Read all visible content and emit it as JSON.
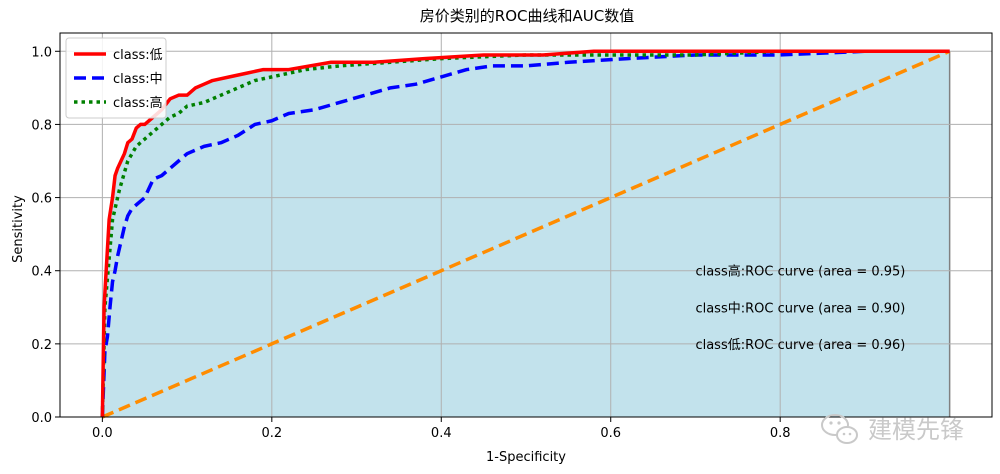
{
  "chart_data": {
    "type": "line",
    "title": "房价类别的ROC曲线和AUC数值",
    "xlabel": "1-Specificity",
    "ylabel": "Sensitivity",
    "xlim": [
      -0.05,
      1.05
    ],
    "ylim": [
      0,
      1.05
    ],
    "xticks": [
      "0.0",
      "0.2",
      "0.4",
      "0.6",
      "0.8"
    ],
    "xtick_values": [
      0,
      0.2,
      0.4,
      0.6,
      0.8
    ],
    "yticks": [
      "0.0",
      "0.2",
      "0.4",
      "0.6",
      "0.8",
      "1.0"
    ],
    "ytick_values": [
      0,
      0.2,
      0.4,
      0.6,
      0.8,
      1.0
    ],
    "grid": true,
    "legend_position": "top-left",
    "fill_color": "#add8e6",
    "series": [
      {
        "name": "class:低",
        "color": "#ff0000",
        "style": "solid",
        "x": [
          0,
          0.002,
          0.004,
          0.006,
          0.008,
          0.01,
          0.012,
          0.015,
          0.018,
          0.022,
          0.026,
          0.03,
          0.035,
          0.04,
          0.045,
          0.05,
          0.06,
          0.07,
          0.08,
          0.09,
          0.1,
          0.11,
          0.12,
          0.13,
          0.15,
          0.17,
          0.19,
          0.22,
          0.27,
          0.32,
          0.38,
          0.45,
          0.52,
          0.58,
          0.65,
          0.8,
          1.0
        ],
        "y": [
          0,
          0.3,
          0.38,
          0.46,
          0.54,
          0.57,
          0.6,
          0.66,
          0.68,
          0.7,
          0.72,
          0.75,
          0.76,
          0.79,
          0.8,
          0.8,
          0.82,
          0.84,
          0.87,
          0.88,
          0.88,
          0.9,
          0.91,
          0.92,
          0.93,
          0.94,
          0.95,
          0.95,
          0.97,
          0.97,
          0.98,
          0.99,
          0.99,
          1.0,
          1.0,
          1.0,
          1.0
        ]
      },
      {
        "name": "class:中",
        "color": "#0000ff",
        "style": "dashed",
        "x": [
          0,
          0.003,
          0.006,
          0.009,
          0.012,
          0.015,
          0.018,
          0.022,
          0.026,
          0.03,
          0.035,
          0.04,
          0.05,
          0.06,
          0.07,
          0.08,
          0.09,
          0.1,
          0.12,
          0.14,
          0.16,
          0.18,
          0.2,
          0.22,
          0.25,
          0.28,
          0.31,
          0.34,
          0.37,
          0.4,
          0.43,
          0.46,
          0.5,
          0.55,
          0.62,
          0.7,
          0.8,
          0.9,
          1.0
        ],
        "y": [
          0,
          0.18,
          0.22,
          0.3,
          0.37,
          0.4,
          0.44,
          0.48,
          0.52,
          0.55,
          0.57,
          0.58,
          0.6,
          0.65,
          0.66,
          0.68,
          0.7,
          0.72,
          0.74,
          0.75,
          0.77,
          0.8,
          0.81,
          0.83,
          0.84,
          0.86,
          0.88,
          0.9,
          0.91,
          0.93,
          0.95,
          0.96,
          0.96,
          0.97,
          0.98,
          0.99,
          0.99,
          1.0,
          1.0
        ]
      },
      {
        "name": "class:高",
        "color": "#008000",
        "style": "dotted",
        "x": [
          0,
          0.003,
          0.006,
          0.009,
          0.012,
          0.016,
          0.02,
          0.025,
          0.03,
          0.035,
          0.04,
          0.05,
          0.06,
          0.07,
          0.08,
          0.09,
          0.1,
          0.12,
          0.14,
          0.16,
          0.18,
          0.2,
          0.24,
          0.28,
          0.34,
          0.4,
          0.5,
          0.6,
          0.7,
          0.8,
          0.9,
          1.0
        ],
        "y": [
          0,
          0.3,
          0.38,
          0.46,
          0.54,
          0.58,
          0.62,
          0.66,
          0.7,
          0.72,
          0.74,
          0.76,
          0.78,
          0.8,
          0.82,
          0.83,
          0.85,
          0.86,
          0.88,
          0.9,
          0.92,
          0.93,
          0.95,
          0.96,
          0.97,
          0.98,
          0.99,
          0.99,
          0.99,
          1.0,
          1.0,
          1.0
        ]
      },
      {
        "name": "",
        "color": "#ff8c00",
        "style": "dashed",
        "x": [
          0,
          1
        ],
        "y": [
          0,
          1
        ]
      }
    ],
    "annotations": [
      {
        "text": "class高:ROC curve (area = 0.95)",
        "x": 0.7,
        "y": 0.4
      },
      {
        "text": "class中:ROC curve (area = 0.90)",
        "x": 0.7,
        "y": 0.3
      },
      {
        "text": "class低:ROC curve (area = 0.96)",
        "x": 0.7,
        "y": 0.2
      }
    ]
  },
  "watermark": {
    "text": "建模先锋",
    "icon": "wechat-icon"
  }
}
